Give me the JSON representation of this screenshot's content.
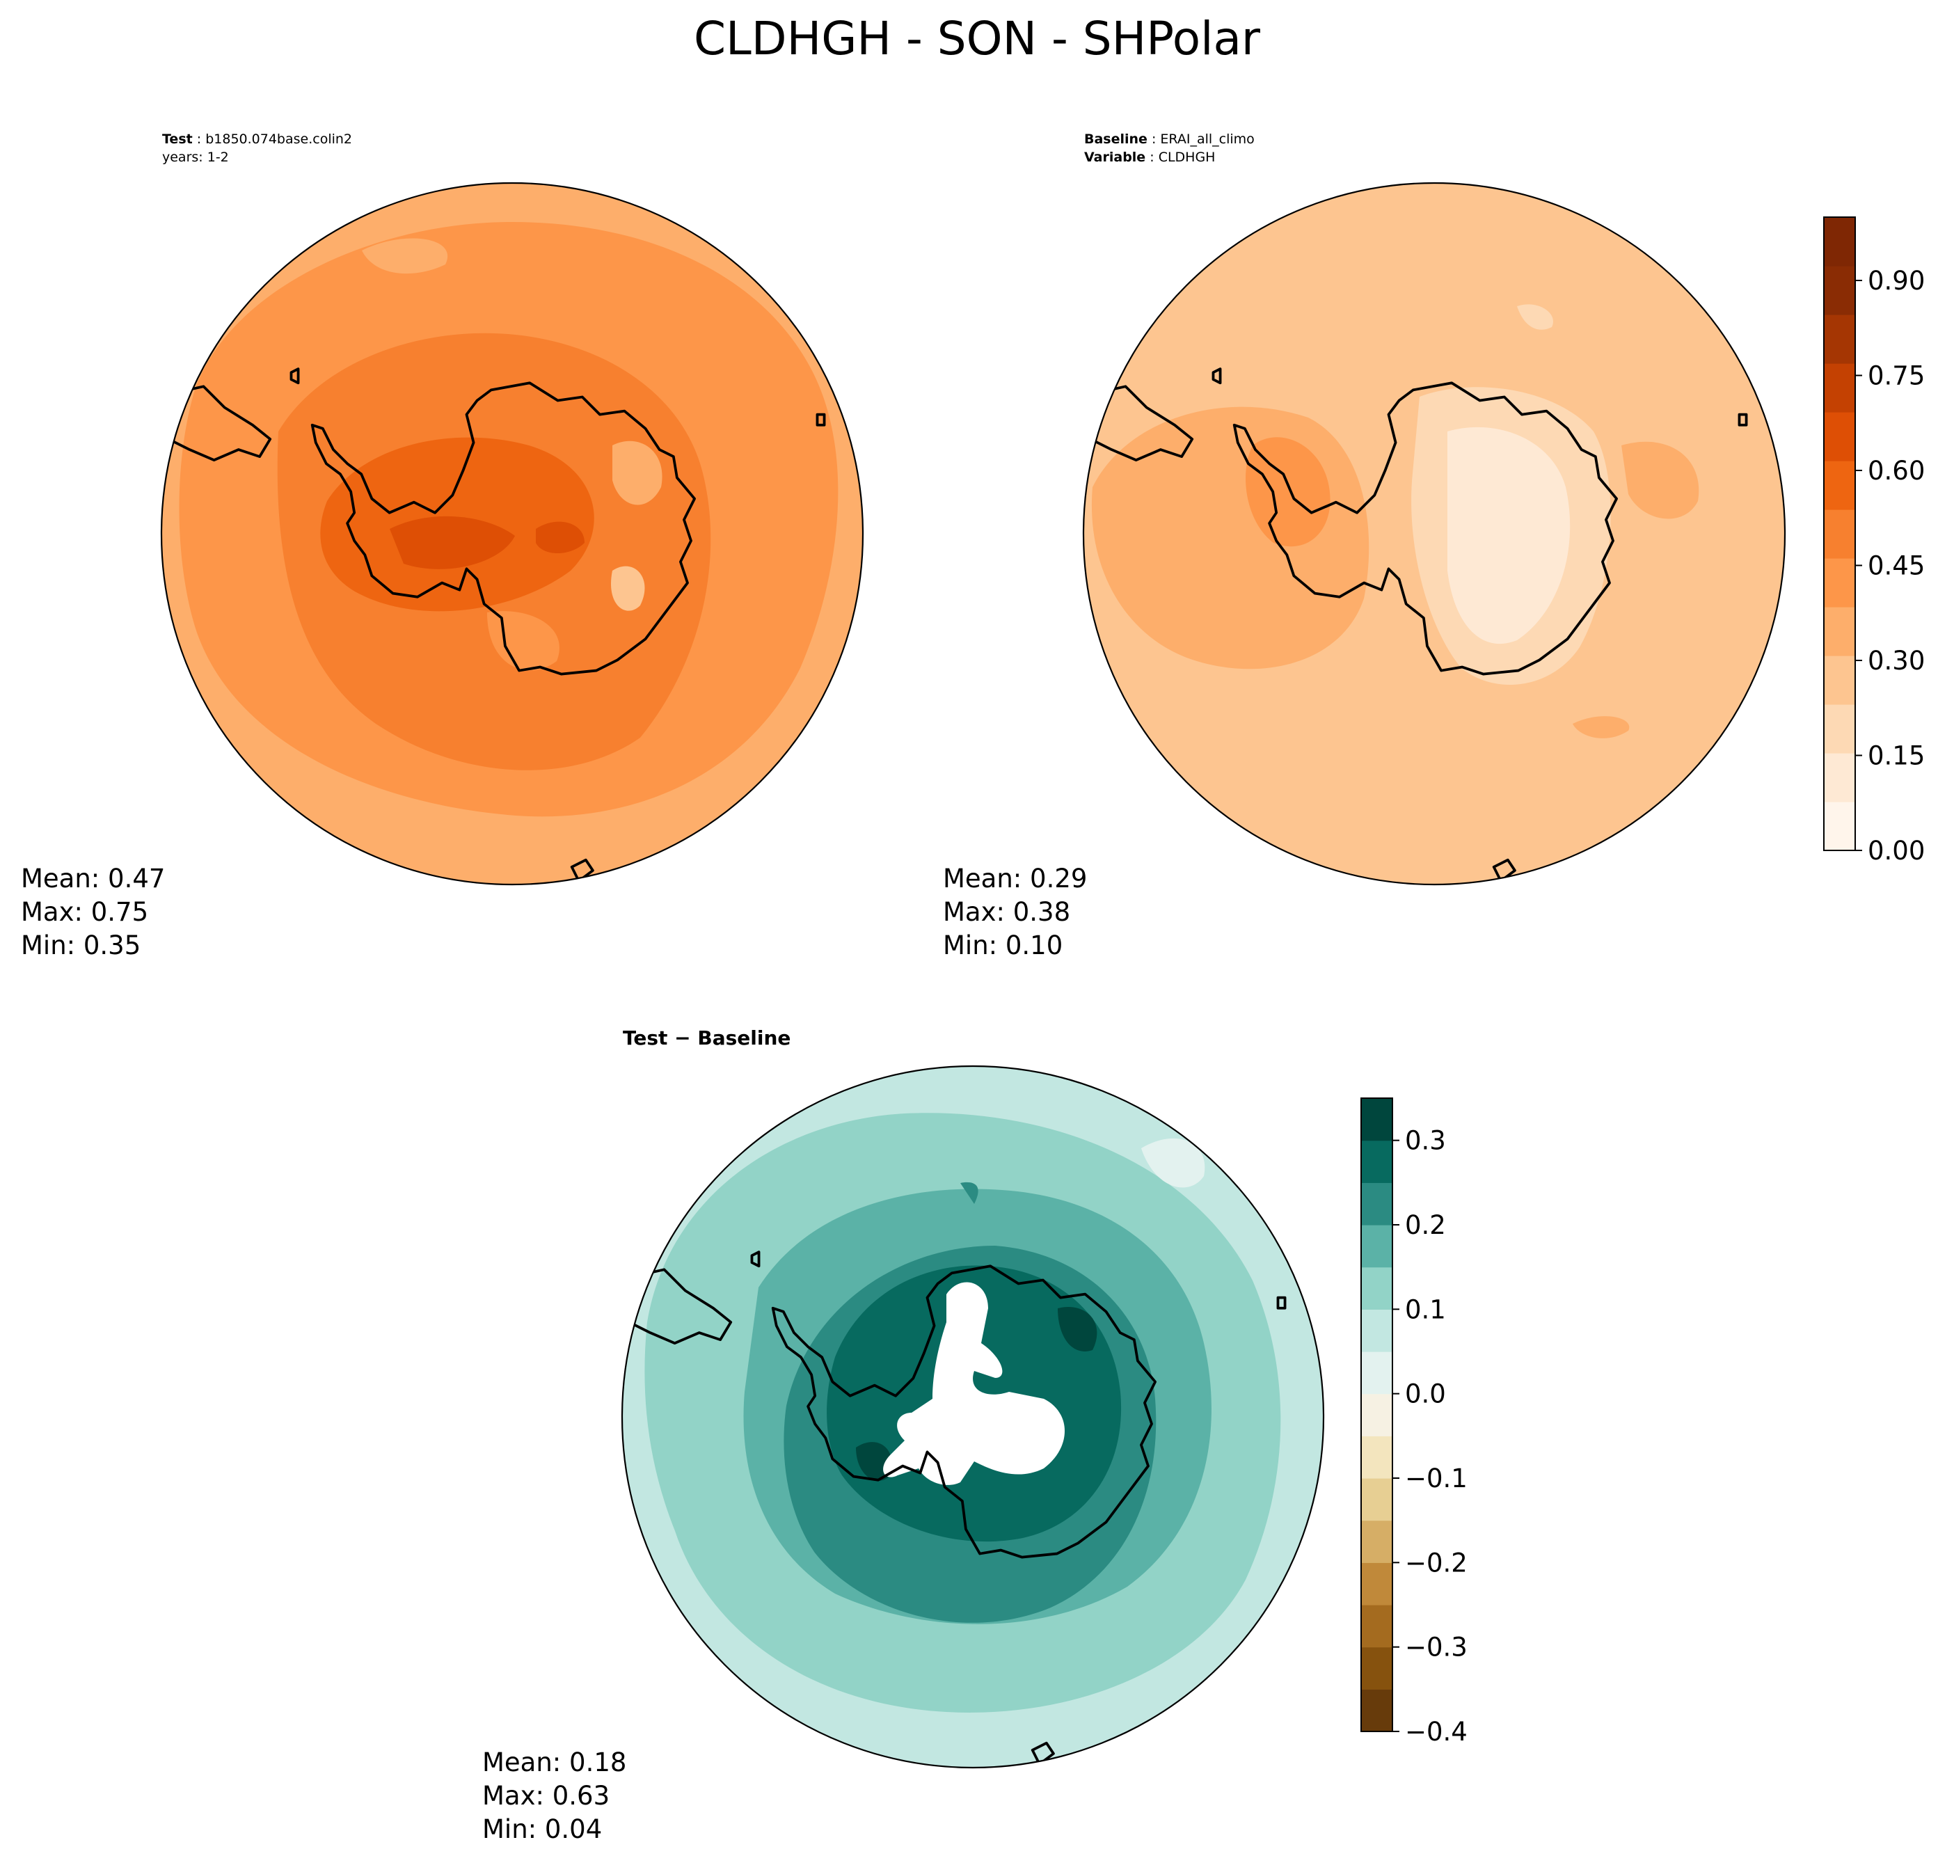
{
  "figure_title": "CLDHGH - SON - SHPolar",
  "panels": {
    "test": {
      "label_bold": "Test",
      "label_value": "b1850.074base.colin2",
      "years": "years: 1-2",
      "stats": {
        "mean": "Mean:  0.47",
        "max": "Max:  0.75",
        "min": "Min:  0.35"
      }
    },
    "baseline": {
      "label_bold": "Baseline",
      "label_value": "ERAI_all_climo",
      "variable_bold": "Variable",
      "variable_value": "CLDHGH",
      "stats": {
        "mean": "Mean:  0.29",
        "max": "Max:  0.38",
        "min": "Min:  0.10"
      }
    },
    "diff": {
      "title": "Test − Baseline",
      "stats": {
        "mean": "Mean:  0.18",
        "max": "Max:  0.63",
        "min": "Min:  0.04"
      }
    }
  },
  "colorbars": {
    "main": {
      "ticks": [
        "0.00",
        "0.15",
        "0.30",
        "0.45",
        "0.60",
        "0.75",
        "0.90"
      ],
      "colors": [
        "#fff5eb",
        "#fee9d4",
        "#fdd9b4",
        "#fdc590",
        "#fdae6b",
        "#fd9649",
        "#f7802f",
        "#ee6511",
        "#de4f05",
        "#c44102",
        "#a53603",
        "#8a2c04",
        "#7f2704"
      ]
    },
    "diff": {
      "ticks": [
        "0.3",
        "0.2",
        "0.1",
        "0.0",
        "−0.1",
        "−0.2",
        "−0.3",
        "−0.4"
      ],
      "colors": [
        "#673b0b",
        "#86520e",
        "#a46b1f",
        "#c0893a",
        "#d6ae66",
        "#e7cf93",
        "#f3e5be",
        "#f6f1e3",
        "#e3f2ef",
        "#c2e7e1",
        "#92d3c7",
        "#5bb2a7",
        "#2b8b82",
        "#076a5f",
        "#00463d"
      ]
    }
  },
  "chart_data": [
    {
      "type": "heatmap",
      "projection": "south polar stereographic",
      "title": "Test: b1850.074base.colin2 (years: 1-2)",
      "variable": "CLDHGH",
      "season": "SON",
      "mean": 0.47,
      "max": 0.75,
      "min": 0.35,
      "colorbar_range": [
        0.0,
        1.0
      ],
      "colorbar_ticks": [
        0.0,
        0.15,
        0.3,
        0.45,
        0.6,
        0.75,
        0.9
      ]
    },
    {
      "type": "heatmap",
      "projection": "south polar stereographic",
      "title": "Baseline: ERAI_all_climo",
      "variable": "CLDHGH",
      "season": "SON",
      "mean": 0.29,
      "max": 0.38,
      "min": 0.1,
      "colorbar_range": [
        0.0,
        1.0
      ],
      "colorbar_ticks": [
        0.0,
        0.15,
        0.3,
        0.45,
        0.6,
        0.75,
        0.9
      ]
    },
    {
      "type": "heatmap",
      "projection": "south polar stereographic",
      "title": "Test − Baseline",
      "variable": "CLDHGH",
      "season": "SON",
      "mean": 0.18,
      "max": 0.63,
      "min": 0.04,
      "colorbar_range": [
        -0.4,
        0.35
      ],
      "colorbar_ticks": [
        -0.4,
        -0.3,
        -0.2,
        -0.1,
        0.0,
        0.1,
        0.2,
        0.3
      ]
    }
  ]
}
